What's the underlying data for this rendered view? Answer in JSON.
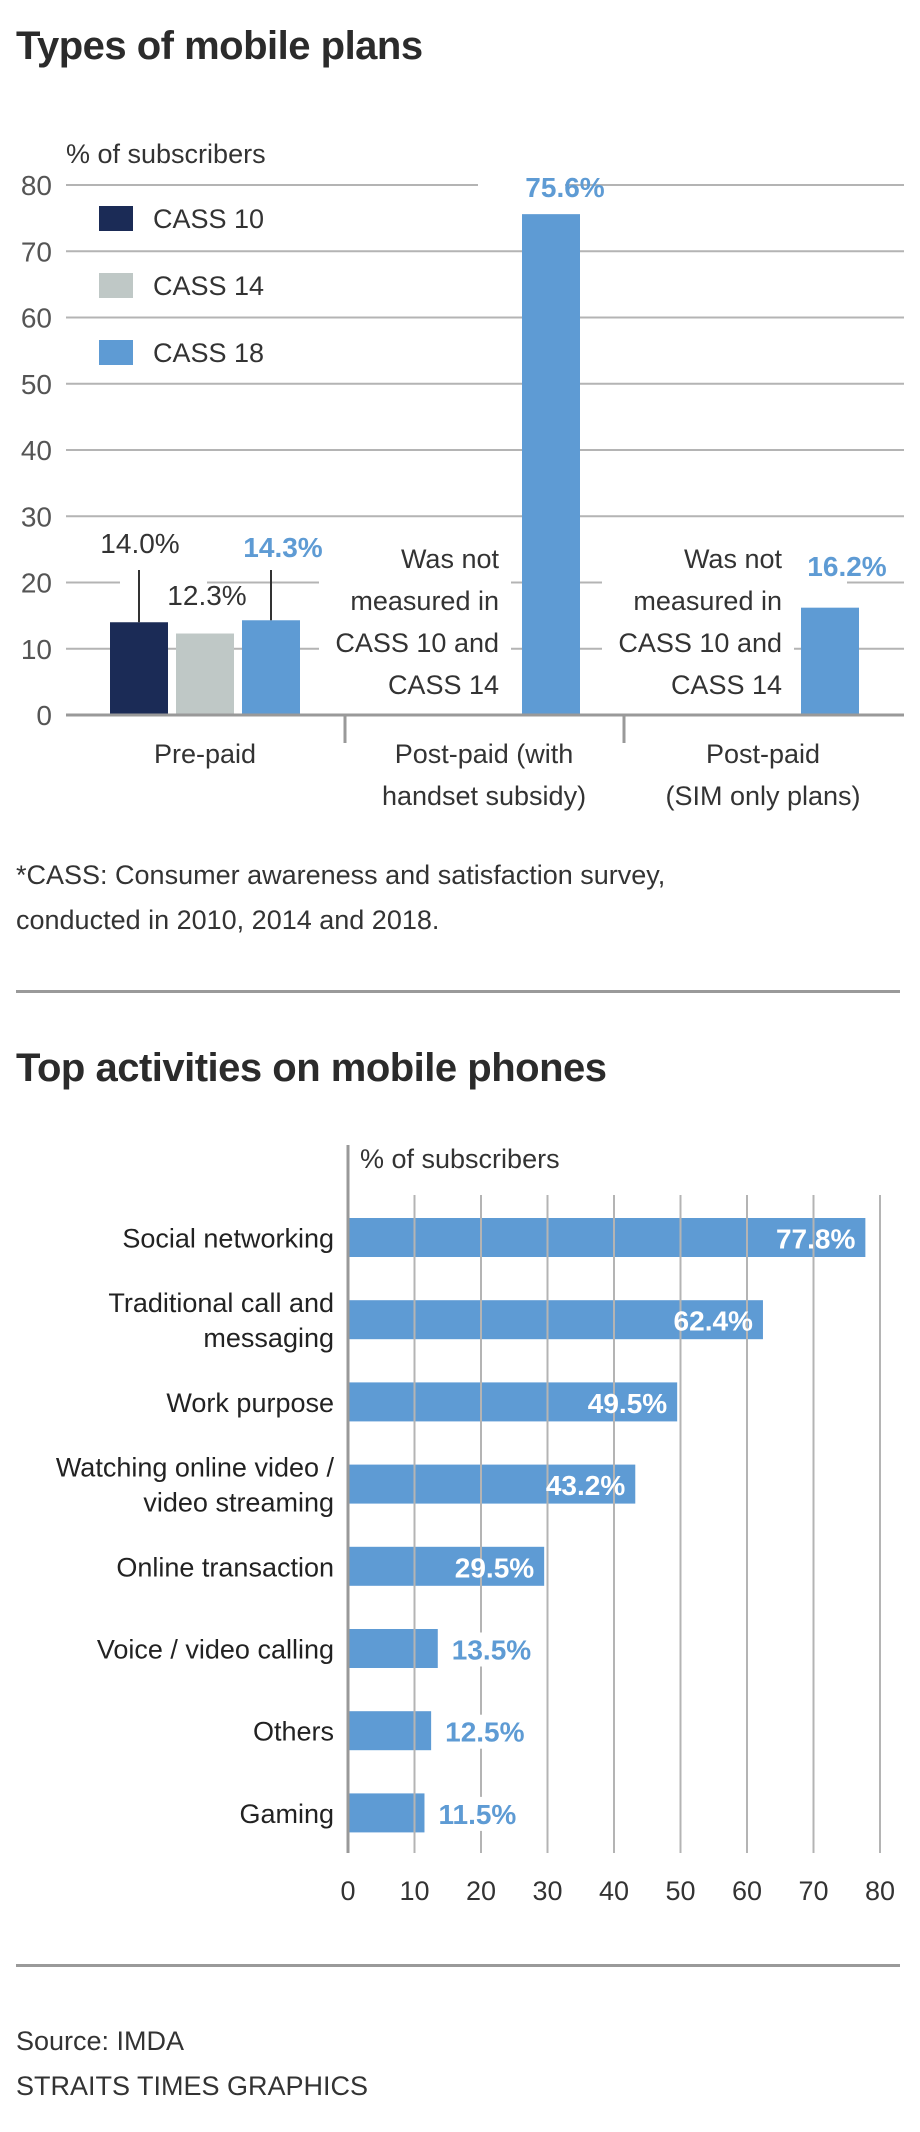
{
  "colors": {
    "cass10": "#1b2b56",
    "cass14": "#bfc8c6",
    "cass18": "#5e9bd4",
    "text": "#333333",
    "grid": "#b4b4b4",
    "axis": "#999999"
  },
  "section1": {
    "title": "Types of mobile plans",
    "footnote_lines": [
      "*CASS: Consumer awareness and satisfaction survey,",
      "conducted in 2010, 2014 and 2018."
    ]
  },
  "section2": {
    "title": "Top activities on mobile phones"
  },
  "footer": {
    "source": "Source: IMDA",
    "credit": "STRAITS TIMES GRAPHICS"
  },
  "chart_data": [
    {
      "type": "bar",
      "orientation": "vertical",
      "title": "Types of mobile plans",
      "ylabel": "% of subscribers",
      "xlabel": "",
      "ylim": [
        0,
        80
      ],
      "yticks": [
        0,
        10,
        20,
        30,
        40,
        50,
        60,
        70,
        80
      ],
      "grid": true,
      "legend_position": "top-left",
      "categories": [
        [
          "Pre-paid"
        ],
        [
          "Post-paid (with",
          "handset subsidy)"
        ],
        [
          "Post-paid",
          "(SIM only plans)"
        ]
      ],
      "series": [
        {
          "name": "CASS 10",
          "color_key": "cass10",
          "values": [
            14.0,
            null,
            null
          ],
          "labels": [
            "14.0%",
            null,
            null
          ]
        },
        {
          "name": "CASS 14",
          "color_key": "cass14",
          "values": [
            12.3,
            null,
            null
          ],
          "labels": [
            "12.3%",
            null,
            null
          ]
        },
        {
          "name": "CASS 18",
          "color_key": "cass18",
          "values": [
            14.3,
            75.6,
            16.2
          ],
          "labels": [
            "14.3%",
            "75.6%",
            "16.2%"
          ]
        }
      ],
      "annotations": [
        {
          "category_index": 1,
          "lines": [
            "Was not",
            "measured in",
            "CASS 10 and",
            "CASS 14"
          ]
        },
        {
          "category_index": 2,
          "lines": [
            "Was not",
            "measured in",
            "CASS 10 and",
            "CASS 14"
          ]
        }
      ]
    },
    {
      "type": "bar",
      "orientation": "horizontal",
      "title": "Top activities on mobile phones",
      "xlabel": "% of subscribers",
      "ylabel": "",
      "xlim": [
        0,
        80
      ],
      "xticks": [
        0,
        10,
        20,
        30,
        40,
        50,
        60,
        70,
        80
      ],
      "grid": true,
      "categories": [
        [
          "Social networking"
        ],
        [
          "Traditional call and",
          "messaging"
        ],
        [
          "Work purpose"
        ],
        [
          "Watching online video /",
          "video streaming"
        ],
        [
          "Online transaction"
        ],
        [
          "Voice / video calling"
        ],
        [
          "Others"
        ],
        [
          "Gaming"
        ]
      ],
      "values": [
        77.8,
        62.4,
        49.5,
        43.2,
        29.5,
        13.5,
        12.5,
        11.5
      ],
      "labels": [
        "77.8%",
        "62.4%",
        "49.5%",
        "43.2%",
        "29.5%",
        "13.5%",
        "12.5%",
        "11.5%"
      ],
      "color_key": "cass18"
    }
  ]
}
